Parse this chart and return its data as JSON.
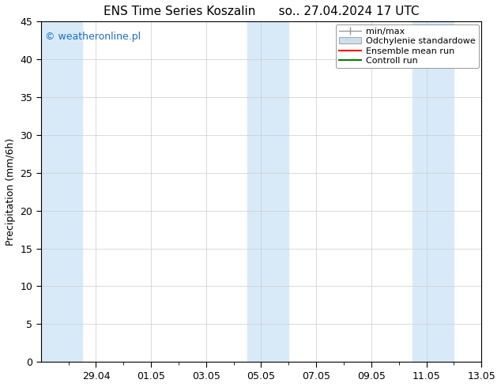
{
  "title": "ENS Time Series Koszalin      so.. 27.04.2024 17 UTC",
  "ylabel": "Precipitation (mm/6h)",
  "watermark": "© weatheronline.pl",
  "watermark_color": "#1a6fc4",
  "ylim": [
    0,
    45
  ],
  "yticks": [
    0,
    5,
    10,
    15,
    20,
    25,
    30,
    35,
    40,
    45
  ],
  "xlim": [
    0,
    16
  ],
  "xtick_labels": [
    "29.04",
    "01.05",
    "03.05",
    "05.05",
    "07.05",
    "09.05",
    "11.05",
    "13.05"
  ],
  "xtick_positions": [
    2,
    4,
    6,
    8,
    10,
    12,
    14,
    16
  ],
  "minor_xtick_positions": [
    1,
    2,
    3,
    4,
    5,
    6,
    7,
    8,
    9,
    10,
    11,
    12,
    13,
    14,
    15,
    16
  ],
  "shaded_columns": [
    {
      "x_start": 0.0,
      "x_end": 1.5
    },
    {
      "x_start": 7.5,
      "x_end": 9.0
    },
    {
      "x_start": 13.5,
      "x_end": 15.0
    }
  ],
  "shade_color": "#d8eaf8",
  "legend_items": [
    {
      "label": "min/max",
      "type": "errorbar",
      "color": "#999999"
    },
    {
      "label": "Odchylenie standardowe",
      "type": "box",
      "facecolor": "#cce0f0",
      "edgecolor": "#aaaaaa"
    },
    {
      "label": "Ensemble mean run",
      "type": "line",
      "color": "#ff0000"
    },
    {
      "label": "Controll run",
      "type": "line",
      "color": "#008000"
    }
  ],
  "background_color": "#ffffff",
  "grid_color": "#cccccc",
  "title_fontsize": 11,
  "axis_fontsize": 9,
  "tick_fontsize": 9,
  "watermark_fontsize": 9
}
